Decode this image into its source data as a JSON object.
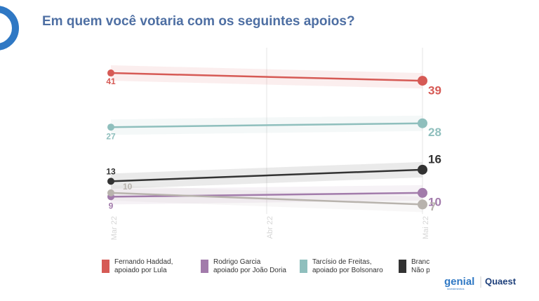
{
  "chart_data": {
    "type": "line",
    "title": "Em quem você votaria com os seguintes apoios?",
    "xticks": [
      "Mar 22",
      "Abr 22",
      "Mai 22"
    ],
    "x": [
      "Mar 22",
      "Mai 22"
    ],
    "ylim": [
      0,
      45
    ],
    "grid": true,
    "legend": "bottom",
    "series": [
      {
        "name": "Fernando Haddad,\napoiado por Lula",
        "color": "#d65a55",
        "values": [
          41,
          39
        ]
      },
      {
        "name": "Rodrigo Garcia\napoiado por João Doria",
        "color": "#a27bab",
        "values": [
          9,
          10
        ]
      },
      {
        "name": "Tarcísio de Freitas,\napoiado por Bolsonaro",
        "color": "#8fbfbd",
        "values": [
          27,
          28
        ]
      },
      {
        "name": "Branco/N\nNão pret",
        "color": "#333333",
        "values": [
          13,
          16
        ]
      },
      {
        "name": null,
        "color": "#b8b3ad",
        "values": [
          10,
          7
        ]
      }
    ],
    "logos": [
      "genial",
      "investimentos",
      "Quaest"
    ]
  }
}
